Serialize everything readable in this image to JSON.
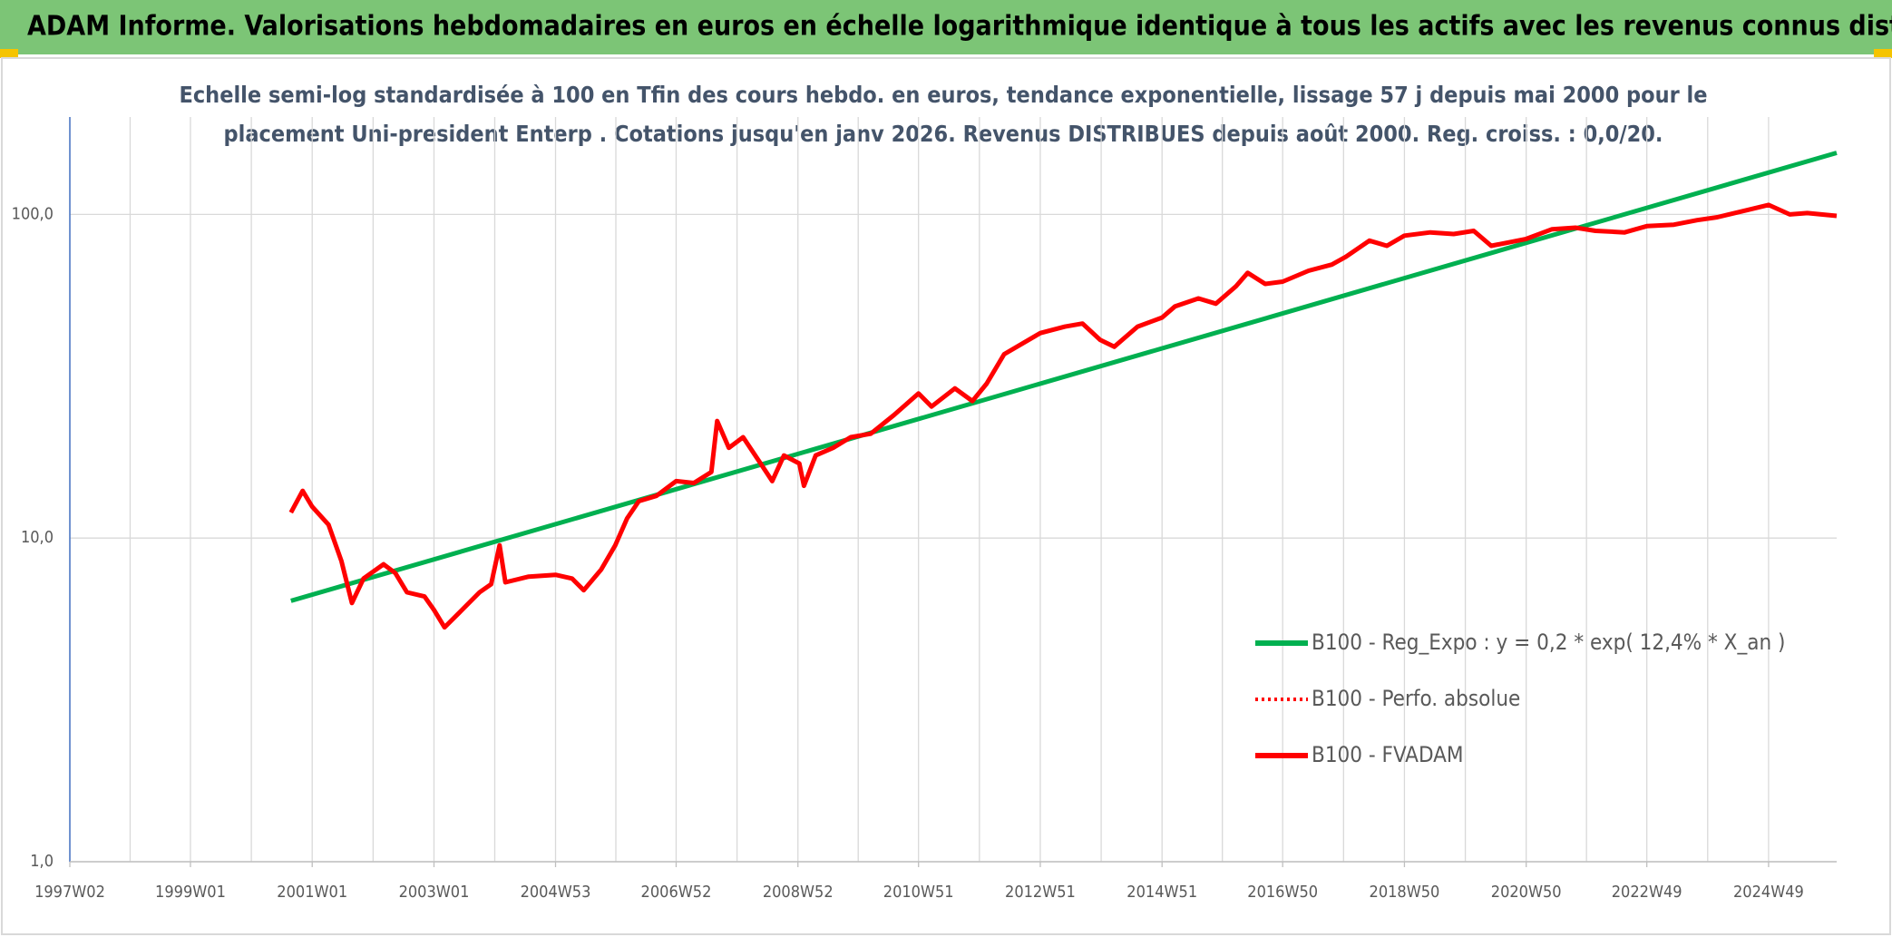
{
  "chart_data": {
    "type": "line",
    "title": "ADAM Informe. Valorisations hebdomadaires en euros en échelle logarithmique identique à tous les actifs avec les revenus connus distribués",
    "subtitle": [
      "Echelle semi-log standardisée à 100 en Tfin des cours hebdo. en euros, tendance exponentielle, lissage 57 j depuis mai 2000 pour le",
      "placement Uni-president Enterp . Cotations jusqu'en janv 2026. Revenus DISTRIBUES depuis août 2000. Reg. croiss. : 0,0/20."
    ],
    "log_y": true,
    "grid": true,
    "legend": "lower right",
    "ylim": [
      1,
      200
    ],
    "yticks": [
      {
        "value": 1,
        "label": "1,0"
      },
      {
        "value": 10,
        "label": "10,0"
      },
      {
        "value": 100,
        "label": "100,0"
      }
    ],
    "xlim": [
      "1997W02",
      "2026W03"
    ],
    "xticks": [
      "1997W02",
      "1999W01",
      "2001W01",
      "2003W01",
      "2004W53",
      "2006W52",
      "2008W52",
      "2010W51",
      "2012W51",
      "2014W51",
      "2016W50",
      "2018W50",
      "2020W50",
      "2022W49",
      "2024W49"
    ],
    "series": [
      {
        "name": "B100 - Reg_Expo : y = 0,2 * exp( 12,4% *  X_an )",
        "color": "#00b050",
        "style": "solid",
        "x": [
          "2000W35",
          "2026W03"
        ],
        "values": [
          6.4,
          155
        ]
      },
      {
        "name": "B100 - Perfo. absolue",
        "color": "#ff0000",
        "style": "dotted",
        "x": [
          "2000W35",
          "2000W45",
          "2001W01",
          "2001W15",
          "2001W26",
          "2001W35",
          "2001W45",
          "2002W10",
          "2002W20",
          "2002W30",
          "2002W45",
          "2003W01",
          "2003W10",
          "2003W25",
          "2003W40",
          "2003W50",
          "2004W05",
          "2004W10",
          "2004W30",
          "2004W53",
          "2005W15",
          "2005W25",
          "2005W40",
          "2005W52",
          "2006W10",
          "2006W20",
          "2006W35",
          "2006W52",
          "2007W15",
          "2007W30",
          "2007W35",
          "2007W45",
          "2008W05",
          "2008W20",
          "2008W30",
          "2008W40",
          "2009W01",
          "2009W05",
          "2009W15",
          "2009W30",
          "2009W45",
          "2010W10",
          "2010W30",
          "2010W51",
          "2011W10",
          "2011W30",
          "2011W45",
          "2012W05",
          "2012W20",
          "2012W51",
          "2013W20",
          "2013W35",
          "2013W50",
          "2014W10",
          "2014W30",
          "2014W51",
          "2015W10",
          "2015W30",
          "2015W45",
          "2016W10",
          "2016W20",
          "2016W35",
          "2016W50",
          "2017W20",
          "2017W40",
          "2017W52",
          "2018W20",
          "2018W35",
          "2018W50",
          "2019W20",
          "2019W40",
          "2020W05",
          "2020W20",
          "2020W50",
          "2021W20",
          "2021W40",
          "2022W05",
          "2022W30",
          "2022W49",
          "2023W20",
          "2023W40",
          "2024W05",
          "2024W30",
          "2024W49",
          "2025W15",
          "2025W30",
          "2026W03"
        ],
        "values": [
          12,
          14,
          12.5,
          11,
          8.5,
          6.3,
          7.5,
          8.3,
          7.8,
          6.8,
          6.6,
          6.0,
          5.3,
          6.0,
          6.8,
          7.2,
          9.5,
          7.3,
          7.6,
          7.7,
          7.5,
          6.9,
          8.0,
          9.5,
          11.5,
          13,
          13.5,
          15,
          14.8,
          16,
          23,
          19,
          20.5,
          17,
          15,
          18,
          17,
          14.5,
          18,
          19,
          20.5,
          21,
          24,
          28,
          25.5,
          29,
          26.5,
          30,
          37,
          43,
          45,
          46,
          41,
          39,
          45,
          48,
          52,
          55,
          53,
          60,
          66,
          61,
          62,
          67,
          70,
          74,
          83,
          80,
          86,
          88,
          87,
          89,
          80,
          84,
          90,
          91,
          89,
          88,
          92,
          93,
          96,
          98,
          103,
          107,
          100,
          101,
          99
        ]
      },
      {
        "name": "B100 - FVADAM",
        "color": "#ff0000",
        "style": "solid",
        "x": [
          "2000W35",
          "2000W45",
          "2001W01",
          "2001W15",
          "2001W26",
          "2001W35",
          "2001W45",
          "2002W10",
          "2002W20",
          "2002W30",
          "2002W45",
          "2003W01",
          "2003W10",
          "2003W25",
          "2003W40",
          "2003W50",
          "2004W05",
          "2004W10",
          "2004W30",
          "2004W53",
          "2005W15",
          "2005W25",
          "2005W40",
          "2005W52",
          "2006W10",
          "2006W20",
          "2006W35",
          "2006W52",
          "2007W15",
          "2007W30",
          "2007W35",
          "2007W45",
          "2008W05",
          "2008W20",
          "2008W30",
          "2008W40",
          "2009W01",
          "2009W05",
          "2009W15",
          "2009W30",
          "2009W45",
          "2010W10",
          "2010W30",
          "2010W51",
          "2011W10",
          "2011W30",
          "2011W45",
          "2012W05",
          "2012W20",
          "2012W51",
          "2013W20",
          "2013W35",
          "2013W50",
          "2014W10",
          "2014W30",
          "2014W51",
          "2015W10",
          "2015W30",
          "2015W45",
          "2016W10",
          "2016W20",
          "2016W35",
          "2016W50",
          "2017W20",
          "2017W40",
          "2017W52",
          "2018W20",
          "2018W35",
          "2018W50",
          "2019W20",
          "2019W40",
          "2020W05",
          "2020W20",
          "2020W50",
          "2021W20",
          "2021W40",
          "2022W05",
          "2022W30",
          "2022W49",
          "2023W20",
          "2023W40",
          "2024W05",
          "2024W30",
          "2024W49",
          "2025W15",
          "2025W30",
          "2026W03"
        ],
        "values": [
          12,
          14,
          12.5,
          11,
          8.5,
          6.3,
          7.5,
          8.3,
          7.8,
          6.8,
          6.6,
          6.0,
          5.3,
          6.0,
          6.8,
          7.2,
          9.5,
          7.3,
          7.6,
          7.7,
          7.5,
          6.9,
          8.0,
          9.5,
          11.5,
          13,
          13.5,
          15,
          14.8,
          16,
          23,
          19,
          20.5,
          17,
          15,
          18,
          17,
          14.5,
          18,
          19,
          20.5,
          21,
          24,
          28,
          25.5,
          29,
          26.5,
          30,
          37,
          43,
          45,
          46,
          41,
          39,
          45,
          48,
          52,
          55,
          53,
          60,
          66,
          61,
          62,
          67,
          70,
          74,
          83,
          80,
          86,
          88,
          87,
          89,
          80,
          84,
          90,
          91,
          89,
          88,
          92,
          93,
          96,
          98,
          103,
          107,
          100,
          101,
          99
        ]
      }
    ]
  }
}
